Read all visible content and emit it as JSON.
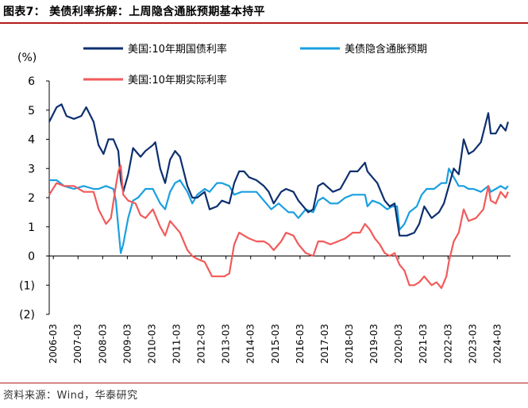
{
  "figure_title": "图表7： 美债利率拆解：上周隐含通胀预期基本持平",
  "source": "资料来源：Wind，华泰研究",
  "colors": {
    "accent_rule": "#b31b1b",
    "nominal": "#0d2f6e",
    "breakeven": "#1a9fe0",
    "real": "#f25a5a"
  },
  "chart_data": {
    "type": "line",
    "ylabel": "(%)",
    "ylim": [
      -2,
      6
    ],
    "yticks": [
      -2,
      -1,
      0,
      1,
      2,
      3,
      4,
      5,
      6
    ],
    "ytick_labels": [
      "(2)",
      "(1)",
      "0",
      "1",
      "2",
      "3",
      "4",
      "5",
      "6"
    ],
    "x_ticks": [
      "2006-03",
      "2007-03",
      "2008-03",
      "2009-03",
      "2010-03",
      "2011-03",
      "2012-03",
      "2013-03",
      "2014-03",
      "2015-03",
      "2016-03",
      "2017-03",
      "2018-03",
      "2019-03",
      "2020-03",
      "2021-03",
      "2022-03",
      "2023-03",
      "2024-03"
    ],
    "x_start": 2006.0,
    "x_end": 2024.7,
    "legend_position": "top",
    "series": [
      {
        "name": "美国:10年期国债利率",
        "color_key": "nominal",
        "points": [
          [
            2006.0,
            4.6
          ],
          [
            2006.3,
            5.1
          ],
          [
            2006.5,
            5.2
          ],
          [
            2006.7,
            4.8
          ],
          [
            2007.0,
            4.7
          ],
          [
            2007.3,
            4.8
          ],
          [
            2007.5,
            5.1
          ],
          [
            2007.8,
            4.6
          ],
          [
            2008.0,
            3.8
          ],
          [
            2008.2,
            3.5
          ],
          [
            2008.4,
            4.0
          ],
          [
            2008.6,
            4.0
          ],
          [
            2008.8,
            3.6
          ],
          [
            2008.9,
            2.6
          ],
          [
            2009.0,
            2.2
          ],
          [
            2009.2,
            2.8
          ],
          [
            2009.4,
            3.7
          ],
          [
            2009.7,
            3.4
          ],
          [
            2009.9,
            3.6
          ],
          [
            2010.2,
            3.8
          ],
          [
            2010.3,
            3.9
          ],
          [
            2010.5,
            3.0
          ],
          [
            2010.7,
            2.5
          ],
          [
            2010.9,
            3.3
          ],
          [
            2011.1,
            3.6
          ],
          [
            2011.3,
            3.4
          ],
          [
            2011.6,
            2.4
          ],
          [
            2011.8,
            2.0
          ],
          [
            2012.0,
            2.0
          ],
          [
            2012.3,
            2.2
          ],
          [
            2012.5,
            1.6
          ],
          [
            2012.8,
            1.7
          ],
          [
            2013.0,
            1.9
          ],
          [
            2013.3,
            1.8
          ],
          [
            2013.5,
            2.5
          ],
          [
            2013.7,
            2.9
          ],
          [
            2013.9,
            2.9
          ],
          [
            2014.1,
            2.7
          ],
          [
            2014.4,
            2.6
          ],
          [
            2014.7,
            2.4
          ],
          [
            2014.9,
            2.2
          ],
          [
            2015.1,
            1.8
          ],
          [
            2015.4,
            2.2
          ],
          [
            2015.6,
            2.3
          ],
          [
            2015.9,
            2.2
          ],
          [
            2016.1,
            1.9
          ],
          [
            2016.5,
            1.5
          ],
          [
            2016.7,
            1.6
          ],
          [
            2016.9,
            2.4
          ],
          [
            2017.1,
            2.5
          ],
          [
            2017.5,
            2.2
          ],
          [
            2017.8,
            2.3
          ],
          [
            2018.0,
            2.6
          ],
          [
            2018.2,
            2.9
          ],
          [
            2018.5,
            2.9
          ],
          [
            2018.8,
            3.2
          ],
          [
            2018.9,
            2.9
          ],
          [
            2019.1,
            2.7
          ],
          [
            2019.3,
            2.5
          ],
          [
            2019.6,
            1.9
          ],
          [
            2019.8,
            1.7
          ],
          [
            2020.0,
            1.8
          ],
          [
            2020.2,
            0.7
          ],
          [
            2020.5,
            0.7
          ],
          [
            2020.8,
            0.8
          ],
          [
            2021.0,
            1.1
          ],
          [
            2021.2,
            1.7
          ],
          [
            2021.5,
            1.3
          ],
          [
            2021.8,
            1.5
          ],
          [
            2022.0,
            1.8
          ],
          [
            2022.2,
            2.4
          ],
          [
            2022.4,
            3.0
          ],
          [
            2022.6,
            2.8
          ],
          [
            2022.8,
            4.0
          ],
          [
            2023.0,
            3.5
          ],
          [
            2023.2,
            3.6
          ],
          [
            2023.5,
            3.9
          ],
          [
            2023.8,
            4.9
          ],
          [
            2023.9,
            4.2
          ],
          [
            2024.1,
            4.2
          ],
          [
            2024.3,
            4.5
          ],
          [
            2024.5,
            4.3
          ],
          [
            2024.6,
            4.6
          ]
        ]
      },
      {
        "name": "美债隐含通胀预期",
        "color_key": "breakeven",
        "points": [
          [
            2006.0,
            2.6
          ],
          [
            2006.3,
            2.6
          ],
          [
            2006.6,
            2.4
          ],
          [
            2007.0,
            2.3
          ],
          [
            2007.4,
            2.4
          ],
          [
            2007.8,
            2.3
          ],
          [
            2008.0,
            2.3
          ],
          [
            2008.3,
            2.4
          ],
          [
            2008.6,
            2.3
          ],
          [
            2008.7,
            1.9
          ],
          [
            2008.8,
            1.0
          ],
          [
            2008.9,
            0.1
          ],
          [
            2009.0,
            0.4
          ],
          [
            2009.2,
            1.3
          ],
          [
            2009.4,
            1.9
          ],
          [
            2009.6,
            2.0
          ],
          [
            2009.9,
            2.3
          ],
          [
            2010.2,
            2.3
          ],
          [
            2010.5,
            1.8
          ],
          [
            2010.7,
            1.6
          ],
          [
            2010.9,
            2.2
          ],
          [
            2011.1,
            2.5
          ],
          [
            2011.3,
            2.6
          ],
          [
            2011.6,
            2.2
          ],
          [
            2011.8,
            1.8
          ],
          [
            2012.0,
            2.1
          ],
          [
            2012.3,
            2.3
          ],
          [
            2012.5,
            2.2
          ],
          [
            2012.8,
            2.5
          ],
          [
            2013.0,
            2.5
          ],
          [
            2013.3,
            2.4
          ],
          [
            2013.5,
            2.1
          ],
          [
            2013.8,
            2.2
          ],
          [
            2014.0,
            2.2
          ],
          [
            2014.4,
            2.2
          ],
          [
            2014.8,
            1.8
          ],
          [
            2015.0,
            1.6
          ],
          [
            2015.3,
            1.8
          ],
          [
            2015.7,
            1.5
          ],
          [
            2015.9,
            1.5
          ],
          [
            2016.1,
            1.3
          ],
          [
            2016.4,
            1.6
          ],
          [
            2016.7,
            1.5
          ],
          [
            2016.9,
            1.9
          ],
          [
            2017.1,
            2.0
          ],
          [
            2017.4,
            1.8
          ],
          [
            2017.7,
            1.8
          ],
          [
            2018.0,
            2.0
          ],
          [
            2018.3,
            2.1
          ],
          [
            2018.6,
            2.1
          ],
          [
            2018.8,
            2.1
          ],
          [
            2018.9,
            1.7
          ],
          [
            2019.1,
            1.9
          ],
          [
            2019.4,
            1.8
          ],
          [
            2019.7,
            1.6
          ],
          [
            2019.9,
            1.7
          ],
          [
            2020.1,
            1.7
          ],
          [
            2020.2,
            0.9
          ],
          [
            2020.4,
            1.1
          ],
          [
            2020.6,
            1.5
          ],
          [
            2020.9,
            1.7
          ],
          [
            2021.1,
            2.1
          ],
          [
            2021.3,
            2.3
          ],
          [
            2021.6,
            2.3
          ],
          [
            2021.9,
            2.5
          ],
          [
            2022.1,
            2.5
          ],
          [
            2022.2,
            3.0
          ],
          [
            2022.4,
            2.7
          ],
          [
            2022.6,
            2.4
          ],
          [
            2022.8,
            2.4
          ],
          [
            2023.0,
            2.3
          ],
          [
            2023.2,
            2.3
          ],
          [
            2023.5,
            2.2
          ],
          [
            2023.8,
            2.4
          ],
          [
            2023.9,
            2.2
          ],
          [
            2024.1,
            2.3
          ],
          [
            2024.3,
            2.4
          ],
          [
            2024.5,
            2.3
          ],
          [
            2024.6,
            2.4
          ]
        ]
      },
      {
        "name": "美国:10年期实际利率",
        "color_key": "real",
        "points": [
          [
            2006.0,
            2.1
          ],
          [
            2006.3,
            2.5
          ],
          [
            2006.6,
            2.4
          ],
          [
            2007.0,
            2.4
          ],
          [
            2007.4,
            2.2
          ],
          [
            2007.8,
            2.2
          ],
          [
            2008.0,
            1.6
          ],
          [
            2008.3,
            1.1
          ],
          [
            2008.5,
            1.3
          ],
          [
            2008.7,
            2.4
          ],
          [
            2008.8,
            2.9
          ],
          [
            2008.9,
            3.1
          ],
          [
            2009.0,
            2.1
          ],
          [
            2009.2,
            1.9
          ],
          [
            2009.5,
            1.8
          ],
          [
            2009.7,
            1.4
          ],
          [
            2009.9,
            1.3
          ],
          [
            2010.2,
            1.6
          ],
          [
            2010.5,
            1.0
          ],
          [
            2010.7,
            0.7
          ],
          [
            2010.9,
            1.2
          ],
          [
            2011.1,
            1.0
          ],
          [
            2011.3,
            0.8
          ],
          [
            2011.6,
            0.2
          ],
          [
            2011.8,
            0.0
          ],
          [
            2012.0,
            -0.1
          ],
          [
            2012.3,
            -0.2
          ],
          [
            2012.6,
            -0.7
          ],
          [
            2012.9,
            -0.7
          ],
          [
            2013.1,
            -0.7
          ],
          [
            2013.3,
            -0.6
          ],
          [
            2013.5,
            0.4
          ],
          [
            2013.7,
            0.8
          ],
          [
            2013.9,
            0.7
          ],
          [
            2014.1,
            0.6
          ],
          [
            2014.4,
            0.5
          ],
          [
            2014.7,
            0.5
          ],
          [
            2014.9,
            0.4
          ],
          [
            2015.1,
            0.2
          ],
          [
            2015.4,
            0.5
          ],
          [
            2015.6,
            0.8
          ],
          [
            2015.9,
            0.7
          ],
          [
            2016.1,
            0.4
          ],
          [
            2016.4,
            0.1
          ],
          [
            2016.7,
            0.0
          ],
          [
            2016.9,
            0.5
          ],
          [
            2017.1,
            0.5
          ],
          [
            2017.4,
            0.4
          ],
          [
            2017.7,
            0.5
          ],
          [
            2018.0,
            0.6
          ],
          [
            2018.3,
            0.8
          ],
          [
            2018.6,
            0.8
          ],
          [
            2018.8,
            1.1
          ],
          [
            2019.0,
            0.9
          ],
          [
            2019.2,
            0.6
          ],
          [
            2019.4,
            0.4
          ],
          [
            2019.6,
            0.1
          ],
          [
            2019.8,
            0.0
          ],
          [
            2020.0,
            0.1
          ],
          [
            2020.2,
            -0.3
          ],
          [
            2020.4,
            -0.5
          ],
          [
            2020.6,
            -1.0
          ],
          [
            2020.8,
            -1.0
          ],
          [
            2021.0,
            -0.9
          ],
          [
            2021.2,
            -0.7
          ],
          [
            2021.5,
            -1.0
          ],
          [
            2021.7,
            -0.9
          ],
          [
            2021.9,
            -1.1
          ],
          [
            2022.1,
            -0.7
          ],
          [
            2022.2,
            -0.2
          ],
          [
            2022.4,
            0.5
          ],
          [
            2022.6,
            0.8
          ],
          [
            2022.8,
            1.6
          ],
          [
            2023.0,
            1.2
          ],
          [
            2023.3,
            1.3
          ],
          [
            2023.6,
            1.6
          ],
          [
            2023.8,
            2.4
          ],
          [
            2023.9,
            1.9
          ],
          [
            2024.1,
            1.8
          ],
          [
            2024.3,
            2.2
          ],
          [
            2024.5,
            2.0
          ],
          [
            2024.6,
            2.2
          ]
        ]
      }
    ]
  }
}
